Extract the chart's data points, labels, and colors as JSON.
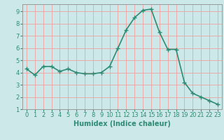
{
  "x": [
    0,
    1,
    2,
    3,
    4,
    5,
    6,
    7,
    8,
    9,
    10,
    11,
    12,
    13,
    14,
    15,
    16,
    17,
    18,
    19,
    20,
    21,
    22,
    23
  ],
  "y": [
    4.3,
    3.8,
    4.5,
    4.5,
    4.1,
    4.3,
    4.0,
    3.9,
    3.9,
    4.0,
    4.5,
    6.0,
    7.5,
    8.5,
    9.1,
    9.2,
    7.3,
    5.9,
    5.9,
    3.2,
    2.3,
    2.0,
    1.7,
    1.4
  ],
  "line_color": "#2e8b74",
  "marker": "+",
  "marker_size": 4,
  "bg_color": "#cce8e8",
  "grid_color": "#f0a0a0",
  "xlabel": "Humidex (Indice chaleur)",
  "xlim": [
    -0.5,
    23.5
  ],
  "ylim": [
    1,
    9.6
  ],
  "yticks": [
    1,
    2,
    3,
    4,
    5,
    6,
    7,
    8,
    9
  ],
  "xticks": [
    0,
    1,
    2,
    3,
    4,
    5,
    6,
    7,
    8,
    9,
    10,
    11,
    12,
    13,
    14,
    15,
    16,
    17,
    18,
    19,
    20,
    21,
    22,
    23
  ],
  "xlabel_fontsize": 7,
  "tick_fontsize": 6,
  "linewidth": 1.2,
  "marker_edge_width": 1.0
}
